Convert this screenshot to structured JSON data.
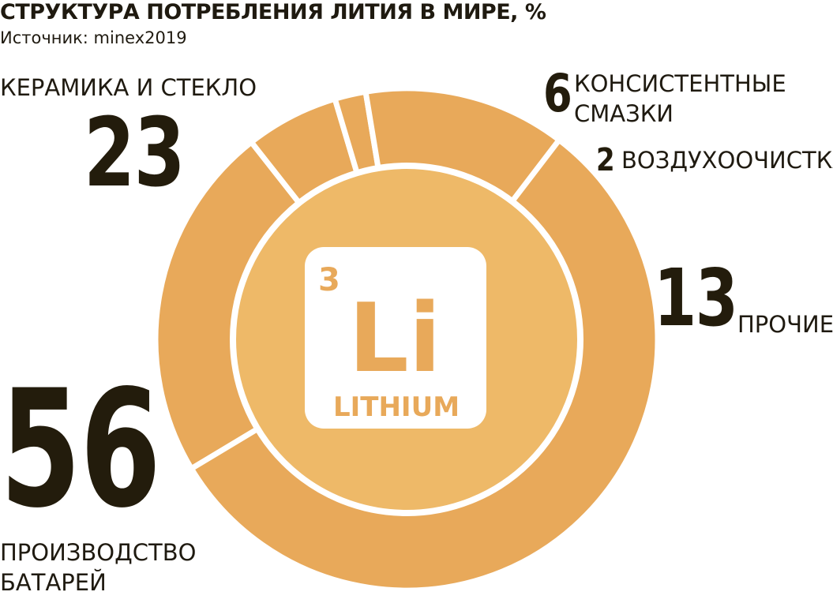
{
  "title": "СТРУКТУРА ПОТРЕБЛЕНИЯ ЛИТИЯ В МИРЕ, %",
  "source": "Источник: minex2019",
  "chart_data": {
    "type": "pie",
    "title": "СТРУКТУРА ПОТРЕБЛЕНИЯ ЛИТИЯ В МИРЕ, %",
    "slices": [
      {
        "label": "КЕРАМИКА И СТЕКЛО",
        "value": 23
      },
      {
        "label": "КОНСИСТЕНТНЫЕ СМАЗКИ",
        "value": 6
      },
      {
        "label": "ВОЗДУХООЧИСТКА",
        "value": 2
      },
      {
        "label": "ПРОЧИЕ",
        "value": 13
      },
      {
        "label": "ПРОИЗВОДСТВО БАТАРЕЙ",
        "value": 56
      }
    ]
  },
  "labels": {
    "ceramics_value": "23",
    "ceramics_name": "КЕРАМИКА И СТЕКЛО",
    "grease_value": "6",
    "grease_line1": "КОНСИСТЕНТНЫЕ",
    "grease_line2": "СМАЗКИ",
    "air_value": "2",
    "air_name": "ВОЗДУХООЧИСТКА",
    "other_value": "13",
    "other_name": "ПРОЧИЕ",
    "battery_value": "56",
    "battery_line1": "ПРОИЗВОДСТВО",
    "battery_line2": "БАТАРЕЙ"
  },
  "element": {
    "number": "3",
    "symbol": "Li",
    "name": "LITHIUM"
  },
  "colors": {
    "ring": "#e8a95a",
    "center": "#eeb968",
    "tile": "#ffffff",
    "tile_text": "#e8a95a",
    "text": "#231c0c"
  }
}
